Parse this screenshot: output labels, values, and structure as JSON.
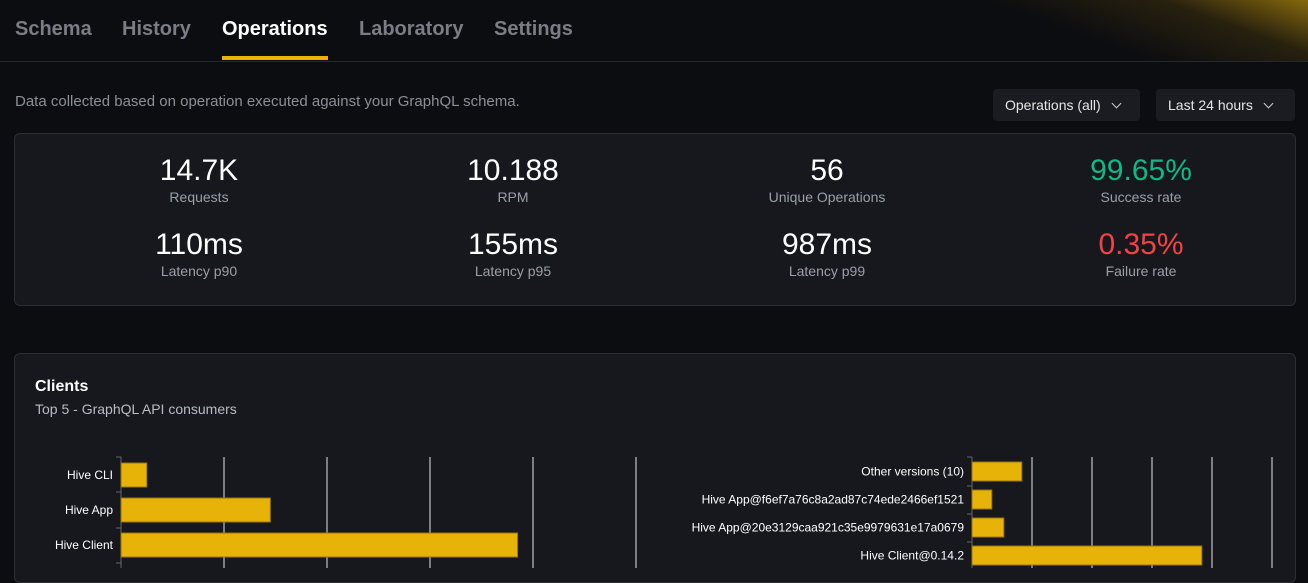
{
  "tabs": [
    {
      "label": "Schema"
    },
    {
      "label": "History"
    },
    {
      "label": "Operations",
      "active": true
    },
    {
      "label": "Laboratory"
    },
    {
      "label": "Settings"
    }
  ],
  "description": "Data collected based on operation executed against your GraphQL schema.",
  "filters": {
    "operations": "Operations (all)",
    "period": "Last 24 hours"
  },
  "stats": [
    {
      "value": "14.7K",
      "label": "Requests"
    },
    {
      "value": "10.188",
      "label": "RPM"
    },
    {
      "value": "56",
      "label": "Unique Operations"
    },
    {
      "value": "99.65%",
      "label": "Success rate",
      "color": "#10b981"
    },
    {
      "value": "110ms",
      "label": "Latency p90"
    },
    {
      "value": "155ms",
      "label": "Latency p95"
    },
    {
      "value": "987ms",
      "label": "Latency p99"
    },
    {
      "value": "0.35%",
      "label": "Failure rate",
      "color": "#ef4444"
    }
  ],
  "clients": {
    "title": "Clients",
    "subtitle": "Top 5 - GraphQL API consumers"
  },
  "colors": {
    "accent": "#eab308",
    "bar": "#e8b308"
  },
  "chart_data": [
    {
      "type": "bar",
      "orientation": "horizontal",
      "categories": [
        "Hive CLI",
        "Hive App",
        "Hive Client"
      ],
      "values": [
        0.25,
        1.45,
        3.85
      ],
      "grid": true
    },
    {
      "type": "bar",
      "orientation": "horizontal",
      "categories": [
        "Other versions (10)",
        "Hive App@f6ef7a76c8a2ad87c74ede2466ef1521",
        "Hive App@20e3129caa921c35e9979631e17a0679",
        "Hive Client@0.14.2"
      ],
      "values": [
        0.83,
        0.33,
        0.53,
        3.83
      ],
      "grid": true
    }
  ]
}
